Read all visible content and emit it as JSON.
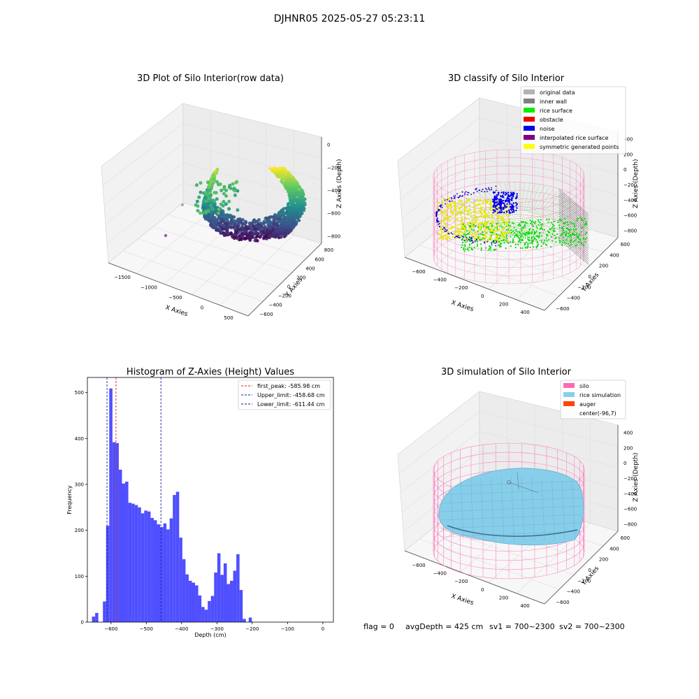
{
  "suptitle": "DJHNR05 2025-05-27 05:23:11",
  "chart_data": [
    {
      "type": "scatter",
      "projection": "3d",
      "title": "3D Plot of Silo Interior(row data)",
      "xlabel": "X Axies",
      "ylabel": "Y Axies",
      "zlabel": "Z Axies (Depth)",
      "x_ticks": [
        "−1500",
        "−1000",
        "−500",
        "0",
        "500"
      ],
      "y_ticks": [
        "−600",
        "−400",
        "−200",
        "0",
        "200",
        "400",
        "600",
        "800"
      ],
      "z_ticks": [
        "−800",
        "−600",
        "−400",
        "−200",
        "0"
      ],
      "colormap": "viridis"
    },
    {
      "type": "scatter",
      "projection": "3d",
      "title": "3D classify of Silo Interior",
      "xlabel": "X Axies",
      "ylabel": "Y Axies",
      "zlabel": "Z Axies (Depth)",
      "x_ticks": [
        "−600",
        "−400",
        "−200",
        "0",
        "200",
        "400"
      ],
      "y_ticks": [
        "−600",
        "−400",
        "−200",
        "0",
        "200",
        "400",
        "600"
      ],
      "z_ticks": [
        "−800",
        "−600",
        "−400",
        "−200",
        "0",
        "200",
        "400"
      ],
      "legend": [
        {
          "label": "original data",
          "color": "#b3b3b3"
        },
        {
          "label": "inner wall",
          "color": "#808080"
        },
        {
          "label": "rice surface",
          "color": "#00ee00"
        },
        {
          "label": "obstacle",
          "color": "#ee0000"
        },
        {
          "label": "noise",
          "color": "#0000ee"
        },
        {
          "label": "interpolated rice surface",
          "color": "#800080"
        },
        {
          "label": "symmetric generated points",
          "color": "#ffff00"
        }
      ],
      "legend_position": "top-right"
    },
    {
      "type": "bar",
      "title": "Histogram of Z-Axies (Height) Values",
      "xlabel": "Depth (cm)",
      "ylabel": "Frequency",
      "xlim": [
        -667,
        30
      ],
      "ylim": [
        0,
        533
      ],
      "x_ticks": [
        -600,
        -500,
        -400,
        -300,
        -200,
        -100,
        0
      ],
      "y_ticks": [
        0,
        100,
        200,
        300,
        400,
        500
      ],
      "bar_color": "#4f4fff",
      "bins": [
        {
          "x0": -654,
          "x1": -645,
          "count": 12
        },
        {
          "x0": -645,
          "x1": -636,
          "count": 20
        },
        {
          "x0": -623,
          "x1": -614,
          "count": 45
        },
        {
          "x0": -614,
          "x1": -605,
          "count": 210
        },
        {
          "x0": -605,
          "x1": -596,
          "count": 509
        },
        {
          "x0": -596,
          "x1": -587,
          "count": 392
        },
        {
          "x0": -587,
          "x1": -578,
          "count": 390
        },
        {
          "x0": -578,
          "x1": -569,
          "count": 332
        },
        {
          "x0": -569,
          "x1": -560,
          "count": 302
        },
        {
          "x0": -560,
          "x1": -551,
          "count": 306
        },
        {
          "x0": -551,
          "x1": -542,
          "count": 260
        },
        {
          "x0": -542,
          "x1": -533,
          "count": 258
        },
        {
          "x0": -533,
          "x1": -524,
          "count": 255
        },
        {
          "x0": -524,
          "x1": -515,
          "count": 250
        },
        {
          "x0": -515,
          "x1": -506,
          "count": 237
        },
        {
          "x0": -506,
          "x1": -497,
          "count": 243
        },
        {
          "x0": -497,
          "x1": -488,
          "count": 241
        },
        {
          "x0": -488,
          "x1": -479,
          "count": 227
        },
        {
          "x0": -479,
          "x1": -470,
          "count": 222
        },
        {
          "x0": -470,
          "x1": -461,
          "count": 213
        },
        {
          "x0": -461,
          "x1": -452,
          "count": 207
        },
        {
          "x0": -452,
          "x1": -443,
          "count": 215
        },
        {
          "x0": -443,
          "x1": -434,
          "count": 202
        },
        {
          "x0": -434,
          "x1": -425,
          "count": 226
        },
        {
          "x0": -425,
          "x1": -416,
          "count": 277
        },
        {
          "x0": -416,
          "x1": -407,
          "count": 284
        },
        {
          "x0": -407,
          "x1": -398,
          "count": 184
        },
        {
          "x0": -398,
          "x1": -389,
          "count": 137
        },
        {
          "x0": -389,
          "x1": -380,
          "count": 104
        },
        {
          "x0": -380,
          "x1": -371,
          "count": 90
        },
        {
          "x0": -371,
          "x1": -362,
          "count": 86
        },
        {
          "x0": -362,
          "x1": -353,
          "count": 80
        },
        {
          "x0": -353,
          "x1": -344,
          "count": 58
        },
        {
          "x0": -344,
          "x1": -335,
          "count": 33
        },
        {
          "x0": -335,
          "x1": -326,
          "count": 27
        },
        {
          "x0": -326,
          "x1": -317,
          "count": 46
        },
        {
          "x0": -317,
          "x1": -308,
          "count": 57
        },
        {
          "x0": -308,
          "x1": -299,
          "count": 108
        },
        {
          "x0": -299,
          "x1": -290,
          "count": 150
        },
        {
          "x0": -290,
          "x1": -281,
          "count": 103
        },
        {
          "x0": -281,
          "x1": -272,
          "count": 128
        },
        {
          "x0": -272,
          "x1": -263,
          "count": 83
        },
        {
          "x0": -263,
          "x1": -254,
          "count": 90
        },
        {
          "x0": -254,
          "x1": -245,
          "count": 112
        },
        {
          "x0": -245,
          "x1": -236,
          "count": 148
        },
        {
          "x0": -236,
          "x1": -227,
          "count": 70
        },
        {
          "x0": -227,
          "x1": -218,
          "count": 7
        },
        {
          "x0": -210,
          "x1": -201,
          "count": 10
        }
      ],
      "vlines": [
        {
          "label": "first_peak: -585.98 cm",
          "x": -585.98,
          "color": "#e31a1c"
        },
        {
          "label": "Upper_limit: -458.68 cm",
          "x": -458.68,
          "color": "#1a1aa6"
        },
        {
          "label": "Lower_limit: -611.44 cm",
          "x": -611.44,
          "color": "#1a1aa6"
        }
      ],
      "legend_position": "top-right"
    },
    {
      "type": "area",
      "projection": "3d",
      "title": "3D simulation of Silo Interior",
      "xlabel": "X Axies",
      "ylabel": "Y Axies",
      "zlabel": "Z Axies (Depth)",
      "x_ticks": [
        "−600",
        "−400",
        "−200",
        "0",
        "200",
        "400"
      ],
      "y_ticks": [
        "−600",
        "−400",
        "−200",
        "0",
        "200",
        "400",
        "600"
      ],
      "z_ticks": [
        "−800",
        "−600",
        "−400",
        "−200",
        "0",
        "200",
        "400"
      ],
      "legend": [
        {
          "label": "silo",
          "color": "#ff69b4"
        },
        {
          "label": "rice simulation",
          "color": "#87ceeb"
        },
        {
          "label": "auger",
          "color": "#ff4500"
        },
        {
          "label": "center(-96,7)",
          "color": ""
        }
      ],
      "legend_position": "top-right"
    }
  ],
  "footer": {
    "flag": "flag = 0",
    "avg_depth": "avgDepth = 425 cm",
    "sv1": "sv1 = 700~2300",
    "sv2": "sv2 = 700~2300"
  }
}
